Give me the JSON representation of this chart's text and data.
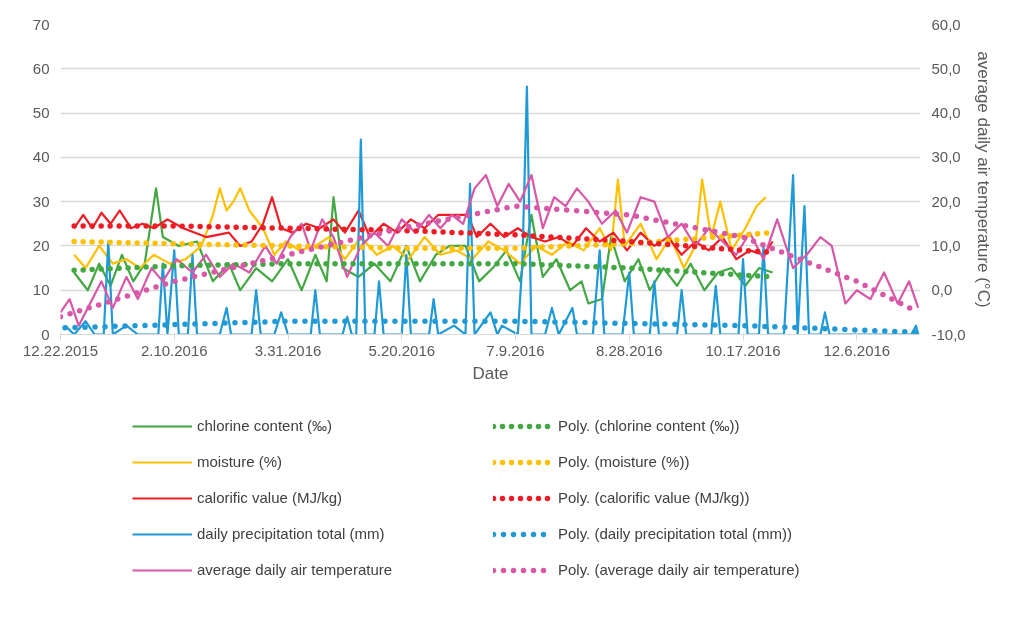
{
  "chart_data": {
    "type": "line",
    "xlabel": "Date",
    "y2label": "average daily air temperature (°C)",
    "xlim": [
      "2015-12-22",
      "2017-01-03"
    ],
    "xticks": [
      {
        "value": "2015-12-22",
        "label": "12.22.2015"
      },
      {
        "value": "2016-02-10",
        "label": "2.10.2016"
      },
      {
        "value": "2016-03-31",
        "label": "3.31.2016"
      },
      {
        "value": "2016-05-20",
        "label": "5.20.2016"
      },
      {
        "value": "2016-07-09",
        "label": "7.9.2016"
      },
      {
        "value": "2016-08-28",
        "label": "8.28.2016"
      },
      {
        "value": "2016-10-17",
        "label": "10.17.2016"
      },
      {
        "value": "2016-12-06",
        "label": "12.6.2016"
      }
    ],
    "ylim": [
      0,
      70
    ],
    "yticks": [
      0,
      10,
      20,
      30,
      40,
      50,
      60,
      70
    ],
    "y2lim": [
      -10,
      60
    ],
    "y2ticks": [
      {
        "value": -10,
        "label": "-10,0"
      },
      {
        "value": 0,
        "label": "0,0"
      },
      {
        "value": 10,
        "label": "10,0"
      },
      {
        "value": 20,
        "label": "20,0"
      },
      {
        "value": 30,
        "label": "30,0"
      },
      {
        "value": 40,
        "label": "40,0"
      },
      {
        "value": 50,
        "label": "50,0"
      },
      {
        "value": 60,
        "label": "60,0"
      }
    ],
    "grid": "y",
    "legend": "bottom",
    "marker": "none",
    "series": [
      {
        "name": "chlorine content (‰)",
        "color": "#43a843",
        "line_style": "solid",
        "x": [
          "2015-12-28",
          "2016-01-03",
          "2016-01-08",
          "2016-01-13",
          "2016-01-18",
          "2016-01-23",
          "2016-01-28",
          "2016-02-02",
          "2016-02-05",
          "2016-02-12",
          "2016-02-20",
          "2016-02-27",
          "2016-03-05",
          "2016-03-10",
          "2016-03-17",
          "2016-03-24",
          "2016-03-31",
          "2016-04-06",
          "2016-04-12",
          "2016-04-17",
          "2016-04-20",
          "2016-04-24",
          "2016-05-01",
          "2016-05-08",
          "2016-05-15",
          "2016-05-22",
          "2016-05-28",
          "2016-06-04",
          "2016-06-10",
          "2016-06-17",
          "2016-06-23",
          "2016-06-29",
          "2016-07-05",
          "2016-07-11",
          "2016-07-16",
          "2016-07-21",
          "2016-07-27",
          "2016-08-02",
          "2016-08-07",
          "2016-08-10",
          "2016-08-16",
          "2016-08-20",
          "2016-08-26",
          "2016-09-01",
          "2016-09-06",
          "2016-09-12",
          "2016-09-18",
          "2016-09-24",
          "2016-09-30",
          "2016-10-06",
          "2016-10-12",
          "2016-10-18",
          "2016-10-24",
          "2016-10-30"
        ],
        "values": [
          14,
          10,
          16,
          11,
          18,
          12,
          16,
          33,
          22,
          20,
          21,
          12,
          16,
          10,
          15,
          12,
          17,
          10,
          18,
          12,
          31,
          15,
          13,
          16,
          12,
          20,
          12,
          18,
          20,
          20,
          12,
          15,
          19,
          12,
          27,
          13,
          17,
          10,
          12,
          7,
          8,
          22,
          12,
          17,
          10,
          15,
          11,
          16,
          10,
          14,
          15,
          11,
          15,
          14
        ]
      },
      {
        "name": "moisture (%)",
        "color": "#ffc000",
        "line_style": "solid",
        "x": [
          "2015-12-28",
          "2016-01-02",
          "2016-01-08",
          "2016-01-14",
          "2016-01-20",
          "2016-01-26",
          "2016-02-01",
          "2016-02-08",
          "2016-02-15",
          "2016-02-22",
          "2016-02-27",
          "2016-03-01",
          "2016-03-04",
          "2016-03-07",
          "2016-03-10",
          "2016-03-14",
          "2016-03-20",
          "2016-03-25",
          "2016-03-30",
          "2016-04-05",
          "2016-04-12",
          "2016-04-18",
          "2016-04-25",
          "2016-05-02",
          "2016-05-09",
          "2016-05-16",
          "2016-05-23",
          "2016-05-30",
          "2016-06-06",
          "2016-06-13",
          "2016-06-20",
          "2016-06-27",
          "2016-07-04",
          "2016-07-11",
          "2016-07-18",
          "2016-07-25",
          "2016-08-01",
          "2016-08-08",
          "2016-08-15",
          "2016-08-20",
          "2016-08-23",
          "2016-08-26",
          "2016-09-02",
          "2016-09-09",
          "2016-09-15",
          "2016-09-21",
          "2016-09-26",
          "2016-09-29",
          "2016-10-03",
          "2016-10-07",
          "2016-10-12",
          "2016-10-18",
          "2016-10-23",
          "2016-10-27"
        ],
        "values": [
          18,
          15,
          20,
          16,
          17,
          15,
          18,
          16,
          17,
          20,
          27,
          33,
          28,
          30,
          33,
          28,
          24,
          18,
          21,
          19,
          20,
          22,
          17,
          22,
          18,
          20,
          17,
          22,
          18,
          19,
          17,
          21,
          19,
          16,
          20,
          18,
          21,
          19,
          24,
          19,
          35,
          20,
          25,
          17,
          22,
          15,
          20,
          35,
          22,
          30,
          19,
          24,
          29,
          31
        ]
      },
      {
        "name": "calorific value (MJ/kg)",
        "color": "#ee1c25",
        "line_style": "solid",
        "x": [
          "2015-12-28",
          "2016-01-01",
          "2016-01-05",
          "2016-01-09",
          "2016-01-13",
          "2016-01-17",
          "2016-01-22",
          "2016-01-27",
          "2016-02-01",
          "2016-02-07",
          "2016-02-14",
          "2016-02-24",
          "2016-03-05",
          "2016-03-10",
          "2016-03-15",
          "2016-03-20",
          "2016-03-24",
          "2016-03-28",
          "2016-04-02",
          "2016-04-08",
          "2016-04-14",
          "2016-04-20",
          "2016-04-25",
          "2016-05-01",
          "2016-05-06",
          "2016-05-12",
          "2016-05-18",
          "2016-05-24",
          "2016-05-30",
          "2016-06-05",
          "2016-06-12",
          "2016-06-18",
          "2016-06-22",
          "2016-06-28",
          "2016-07-04",
          "2016-07-10",
          "2016-07-16",
          "2016-07-22",
          "2016-07-28",
          "2016-08-03",
          "2016-08-09",
          "2016-08-15",
          "2016-08-21",
          "2016-08-27",
          "2016-09-02",
          "2016-09-08",
          "2016-09-14",
          "2016-09-20",
          "2016-09-26",
          "2016-10-02",
          "2016-10-08",
          "2016-10-14",
          "2016-10-20",
          "2016-10-26",
          "2016-10-30"
        ],
        "values": [
          24,
          27,
          24,
          27.5,
          25,
          28,
          24,
          25,
          24,
          26,
          24,
          22,
          23,
          20,
          21,
          25,
          31,
          24,
          23,
          25,
          24,
          26,
          23,
          28,
          22,
          25,
          23,
          26,
          24,
          27,
          27,
          27,
          22,
          25,
          22,
          24,
          22,
          21,
          22,
          20,
          24,
          21,
          23,
          19,
          23,
          20,
          22,
          18,
          21,
          19,
          22,
          17,
          19,
          18,
          21
        ]
      },
      {
        "name": "daily precipitation total (mm)",
        "color": "#1f9ad6",
        "line_style": "solid",
        "x": [
          "2015-12-24",
          "2015-12-28",
          "2016-01-02",
          "2016-01-06",
          "2016-01-10",
          "2016-01-12",
          "2016-01-14",
          "2016-01-20",
          "2016-01-25",
          "2016-02-03",
          "2016-02-05",
          "2016-02-07",
          "2016-02-10",
          "2016-02-12",
          "2016-02-16",
          "2016-02-18",
          "2016-02-20",
          "2016-03-01",
          "2016-03-04",
          "2016-03-06",
          "2016-03-15",
          "2016-03-17",
          "2016-03-19",
          "2016-03-25",
          "2016-03-28",
          "2016-03-31",
          "2016-04-10",
          "2016-04-12",
          "2016-04-14",
          "2016-04-24",
          "2016-04-26",
          "2016-04-28",
          "2016-04-30",
          "2016-05-02",
          "2016-05-04",
          "2016-05-08",
          "2016-05-10",
          "2016-05-12",
          "2016-05-20",
          "2016-05-22",
          "2016-05-24",
          "2016-06-01",
          "2016-06-03",
          "2016-06-05",
          "2016-06-12",
          "2016-06-17",
          "2016-06-19",
          "2016-06-21",
          "2016-06-28",
          "2016-07-01",
          "2016-07-03",
          "2016-07-10",
          "2016-07-12",
          "2016-07-14",
          "2016-07-16",
          "2016-07-22",
          "2016-07-25",
          "2016-07-28",
          "2016-08-03",
          "2016-08-05",
          "2016-08-12",
          "2016-08-15",
          "2016-08-17",
          "2016-08-25",
          "2016-08-28",
          "2016-08-30",
          "2016-09-06",
          "2016-09-08",
          "2016-09-10",
          "2016-09-18",
          "2016-09-20",
          "2016-09-22",
          "2016-10-03",
          "2016-10-05",
          "2016-10-07",
          "2016-10-15",
          "2016-10-17",
          "2016-10-19",
          "2016-10-24",
          "2016-10-26",
          "2016-10-28",
          "2016-11-04",
          "2016-11-08",
          "2016-11-10",
          "2016-11-13",
          "2016-11-15",
          "2016-11-20",
          "2016-11-22",
          "2016-11-24",
          "2016-12-05",
          "2016-12-20",
          "2016-12-30",
          "2017-01-01",
          "2017-01-02"
        ],
        "values": [
          2,
          0,
          3,
          0,
          0,
          21,
          0,
          2,
          0,
          0,
          16,
          0,
          19,
          0,
          0,
          18,
          0,
          0,
          6,
          0,
          0,
          10,
          0,
          0,
          5,
          0,
          0,
          10,
          0,
          0,
          4,
          0,
          0,
          44,
          0,
          0,
          12,
          0,
          0,
          18,
          0,
          0,
          8,
          0,
          2,
          0,
          34,
          0,
          5,
          0,
          2,
          0,
          16,
          56,
          0,
          0,
          6,
          0,
          6,
          0,
          0,
          19,
          0,
          0,
          14,
          0,
          0,
          12,
          0,
          0,
          10,
          0,
          0,
          11,
          0,
          0,
          17,
          0,
          0,
          20,
          0,
          0,
          36,
          0,
          29,
          0,
          0,
          5,
          0,
          0,
          0,
          0,
          2,
          0
        ]
      },
      {
        "name": "average daily air temperature",
        "color": "#d957a7",
        "line_style": "solid",
        "axis": "y2",
        "x": [
          "2015-12-22",
          "2015-12-26",
          "2015-12-30",
          "2016-01-04",
          "2016-01-09",
          "2016-01-14",
          "2016-01-20",
          "2016-01-25",
          "2016-01-31",
          "2016-02-05",
          "2016-02-11",
          "2016-02-18",
          "2016-02-24",
          "2016-03-01",
          "2016-03-07",
          "2016-03-14",
          "2016-03-21",
          "2016-03-26",
          "2016-04-01",
          "2016-04-06",
          "2016-04-10",
          "2016-04-15",
          "2016-04-20",
          "2016-04-26",
          "2016-05-02",
          "2016-05-08",
          "2016-05-14",
          "2016-05-20",
          "2016-05-26",
          "2016-06-01",
          "2016-06-06",
          "2016-06-11",
          "2016-06-16",
          "2016-06-21",
          "2016-06-26",
          "2016-07-01",
          "2016-07-06",
          "2016-07-11",
          "2016-07-16",
          "2016-07-21",
          "2016-07-26",
          "2016-07-31",
          "2016-08-05",
          "2016-08-10",
          "2016-08-16",
          "2016-08-22",
          "2016-08-27",
          "2016-09-02",
          "2016-09-08",
          "2016-09-14",
          "2016-09-20",
          "2016-09-26",
          "2016-10-02",
          "2016-10-08",
          "2016-10-14",
          "2016-10-20",
          "2016-10-26",
          "2016-11-01",
          "2016-11-08",
          "2016-11-14",
          "2016-11-20",
          "2016-11-25",
          "2016-12-01",
          "2016-12-06",
          "2016-12-12",
          "2016-12-18",
          "2016-12-24",
          "2016-12-29",
          "2017-01-02"
        ],
        "values": [
          -5,
          -2,
          -8,
          -3,
          2,
          -4,
          3,
          -2,
          5,
          2,
          7,
          4,
          8,
          3,
          6,
          4,
          10,
          6,
          12,
          15,
          9,
          16,
          12,
          3,
          10,
          13,
          10,
          16,
          13,
          17,
          14,
          17,
          15,
          23,
          26,
          19,
          24,
          20,
          26,
          14,
          21,
          19,
          23,
          20,
          15,
          18,
          13,
          21,
          20,
          12,
          15,
          10,
          14,
          11,
          8,
          13,
          7,
          16,
          5,
          8,
          12,
          10,
          -3,
          0,
          -2,
          4,
          -3,
          2,
          -4
        ]
      },
      {
        "name": "Poly. (chlorine content (‰))",
        "color": "#43a843",
        "line_style": "dotted",
        "x": [
          "2015-12-28",
          "2016-02-10",
          "2016-03-31",
          "2016-05-20",
          "2016-07-09",
          "2016-08-28",
          "2016-10-30"
        ],
        "values": [
          14.5,
          15.5,
          16,
          16,
          16,
          15,
          13
        ]
      },
      {
        "name": "Poly. (moisture (%))",
        "color": "#ffc000",
        "line_style": "dotted",
        "x": [
          "2015-12-28",
          "2016-02-10",
          "2016-03-31",
          "2016-05-20",
          "2016-07-09",
          "2016-08-28",
          "2016-10-30"
        ],
        "values": [
          21,
          20.5,
          20,
          19.5,
          19.5,
          20.5,
          23
        ]
      },
      {
        "name": "Poly. (calorific value (MJ/kg))",
        "color": "#ee1c25",
        "line_style": "dotted",
        "x": [
          "2015-12-28",
          "2016-02-10",
          "2016-03-31",
          "2016-05-20",
          "2016-07-09",
          "2016-08-28",
          "2016-10-30"
        ],
        "values": [
          24.5,
          24.5,
          24,
          23.5,
          22.5,
          21,
          18.5
        ]
      },
      {
        "name": "Poly. (daily precipitation total (mm))",
        "color": "#1f9ad6",
        "line_style": "dotted",
        "x": [
          "2015-12-24",
          "2016-03-31",
          "2016-07-09",
          "2016-10-17",
          "2017-01-02"
        ],
        "values": [
          1.5,
          3,
          3,
          2,
          0.5
        ]
      },
      {
        "name": "Poly. (average daily air temperature)",
        "color": "#d957a7",
        "line_style": "dotted",
        "axis": "y2",
        "x": [
          "2015-12-22",
          "2016-02-10",
          "2016-03-31",
          "2016-05-20",
          "2016-07-09",
          "2016-08-28",
          "2016-10-17",
          "2016-12-06",
          "2017-01-02"
        ],
        "values": [
          -6,
          2,
          8,
          14,
          19,
          17,
          12,
          2,
          -5
        ]
      }
    ]
  }
}
